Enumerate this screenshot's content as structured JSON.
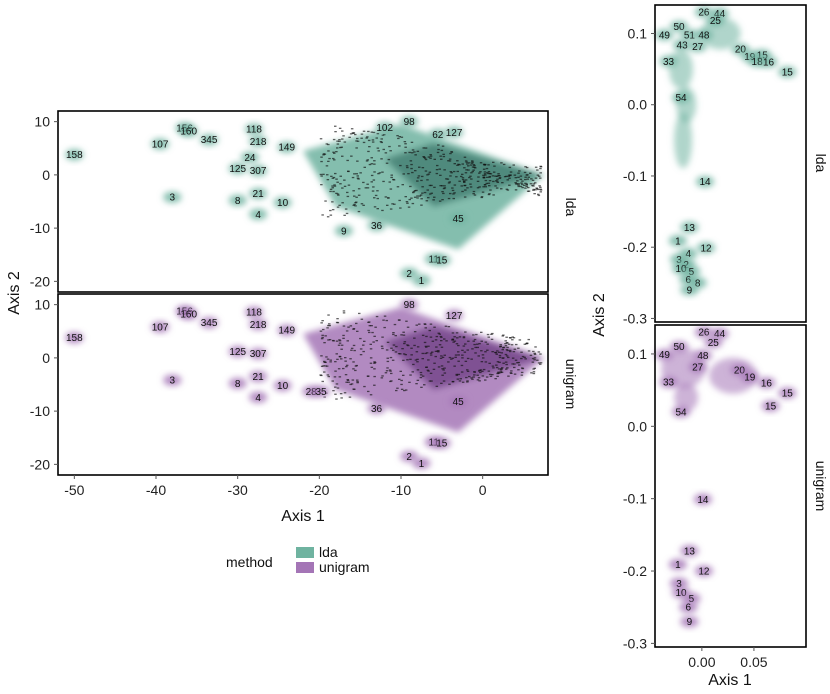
{
  "colors": {
    "lda": "#6fb3a0",
    "lda_dark": "#3f7a6c",
    "unigram": "#a475b6",
    "unigram_dark": "#6f3f84",
    "label": "#111111"
  },
  "legend": {
    "title": "method",
    "items": [
      "lda",
      "unigram"
    ]
  },
  "chart_data": [
    {
      "type": "scatter",
      "name": "left-faceted-plot",
      "xlabel": "Axis 1",
      "ylabel": "Axis 2",
      "xlim": [
        -52,
        8
      ],
      "ylim": [
        -22,
        12
      ],
      "xticks": [
        "-50",
        "-40",
        "-30",
        "-20",
        "-10",
        "0"
      ],
      "xtick_values": [
        -50,
        -40,
        -30,
        -20,
        -10,
        0
      ],
      "yticks": [
        "10",
        "0",
        "-10",
        "-20"
      ],
      "ytick_values": [
        10,
        0,
        -10,
        -20
      ],
      "facets": [
        {
          "label": "lda",
          "series": "lda",
          "points": [
            {
              "label": "158",
              "x": -50,
              "y": 3.8
            },
            {
              "label": "107",
              "x": -39.5,
              "y": 5.8
            },
            {
              "label": "156",
              "x": -36.5,
              "y": 8.8
            },
            {
              "label": "160",
              "x": -36,
              "y": 8.2
            },
            {
              "label": "345",
              "x": -33.5,
              "y": 6.6
            },
            {
              "label": "118",
              "x": -28,
              "y": 8.6
            },
            {
              "label": "218",
              "x": -27.5,
              "y": 6.3
            },
            {
              "label": "149",
              "x": -24,
              "y": 5.2
            },
            {
              "label": "24",
              "x": -28.5,
              "y": 3.3
            },
            {
              "label": "125",
              "x": -30,
              "y": 1.2
            },
            {
              "label": "307",
              "x": -27.5,
              "y": 0.8
            },
            {
              "label": "3",
              "x": -38,
              "y": -4.2
            },
            {
              "label": "8",
              "x": -30,
              "y": -4.8
            },
            {
              "label": "21",
              "x": -27.5,
              "y": -3.5
            },
            {
              "label": "10",
              "x": -24.5,
              "y": -5.2
            },
            {
              "label": "4",
              "x": -27.5,
              "y": -7.4
            },
            {
              "label": "9",
              "x": -17,
              "y": -10.5
            },
            {
              "label": "98",
              "x": -9,
              "y": 10
            },
            {
              "label": "102",
              "x": -12,
              "y": 8.9
            },
            {
              "label": "62",
              "x": -5.5,
              "y": 7.6
            },
            {
              "label": "127",
              "x": -3.5,
              "y": 8
            },
            {
              "label": "36",
              "x": -13,
              "y": -9.5
            },
            {
              "label": "45",
              "x": -3,
              "y": -8.2
            },
            {
              "label": "11",
              "x": -6,
              "y": -15.8
            },
            {
              "label": "15",
              "x": -5,
              "y": -16
            },
            {
              "label": "2",
              "x": -9,
              "y": -18.5
            },
            {
              "label": "1",
              "x": -7.5,
              "y": -19.8
            }
          ]
        },
        {
          "label": "unigram",
          "series": "unigram",
          "points": [
            {
              "label": "158",
              "x": -50,
              "y": 3.8
            },
            {
              "label": "107",
              "x": -39.5,
              "y": 5.8
            },
            {
              "label": "156",
              "x": -36.5,
              "y": 8.8
            },
            {
              "label": "160",
              "x": -36,
              "y": 8.2
            },
            {
              "label": "345",
              "x": -33.5,
              "y": 6.6
            },
            {
              "label": "118",
              "x": -28,
              "y": 8.6
            },
            {
              "label": "218",
              "x": -27.5,
              "y": 6.3
            },
            {
              "label": "149",
              "x": -24,
              "y": 5.2
            },
            {
              "label": "125",
              "x": -30,
              "y": 1.2
            },
            {
              "label": "307",
              "x": -27.5,
              "y": 0.8
            },
            {
              "label": "3",
              "x": -38,
              "y": -4.2
            },
            {
              "label": "8",
              "x": -30,
              "y": -4.8
            },
            {
              "label": "21",
              "x": -27.5,
              "y": -3.5
            },
            {
              "label": "10",
              "x": -24.5,
              "y": -5.2
            },
            {
              "label": "4",
              "x": -27.5,
              "y": -7.4
            },
            {
              "label": "28",
              "x": -21,
              "y": -6.3
            },
            {
              "label": "35",
              "x": -19.8,
              "y": -6.3
            },
            {
              "label": "36",
              "x": -13,
              "y": -9.5
            },
            {
              "label": "98",
              "x": -9,
              "y": 10
            },
            {
              "label": "127",
              "x": -3.5,
              "y": 8
            },
            {
              "label": "45",
              "x": -3,
              "y": -8.2
            },
            {
              "label": "11",
              "x": -6,
              "y": -15.8
            },
            {
              "label": "15",
              "x": -5,
              "y": -16
            },
            {
              "label": "2",
              "x": -9,
              "y": -18.5
            },
            {
              "label": "1",
              "x": -7.5,
              "y": -19.8
            }
          ]
        }
      ]
    },
    {
      "type": "scatter",
      "name": "right-faceted-plot",
      "xlabel": "Axis 1",
      "ylabel": "Axis 2",
      "xlim": [
        -0.045,
        0.1
      ],
      "ylim": [
        -0.305,
        0.14
      ],
      "xticks": [
        "0.00",
        "0.05"
      ],
      "xtick_values": [
        0.0,
        0.05
      ],
      "yticks": [
        "0.1",
        "0.0",
        "-0.1",
        "-0.2",
        "-0.3"
      ],
      "ytick_values": [
        0.1,
        0.0,
        -0.1,
        -0.2,
        -0.3
      ],
      "facets": [
        {
          "label": "lda",
          "series": "lda",
          "points": [
            {
              "label": "26",
              "x": 0.002,
              "y": 0.13
            },
            {
              "label": "44",
              "x": 0.017,
              "y": 0.128
            },
            {
              "label": "50",
              "x": -0.022,
              "y": 0.11
            },
            {
              "label": "49",
              "x": -0.036,
              "y": 0.098
            },
            {
              "label": "51",
              "x": -0.012,
              "y": 0.098
            },
            {
              "label": "48",
              "x": 0.002,
              "y": 0.098
            },
            {
              "label": "43",
              "x": -0.019,
              "y": 0.084
            },
            {
              "label": "27",
              "x": -0.004,
              "y": 0.082
            },
            {
              "label": "25",
              "x": 0.013,
              "y": 0.118
            },
            {
              "label": "20",
              "x": 0.037,
              "y": 0.078
            },
            {
              "label": "19",
              "x": 0.046,
              "y": 0.068
            },
            {
              "label": "15",
              "x": 0.058,
              "y": 0.07
            },
            {
              "label": "18",
              "x": 0.053,
              "y": 0.061
            },
            {
              "label": "16",
              "x": 0.064,
              "y": 0.06
            },
            {
              "label": "15",
              "x": 0.082,
              "y": 0.046
            },
            {
              "label": "33",
              "x": -0.032,
              "y": 0.061
            },
            {
              "label": "54",
              "x": -0.02,
              "y": 0.01
            },
            {
              "label": "14",
              "x": 0.003,
              "y": -0.108
            },
            {
              "label": "13",
              "x": -0.012,
              "y": -0.172
            },
            {
              "label": "1",
              "x": -0.023,
              "y": -0.191
            },
            {
              "label": "12",
              "x": 0.004,
              "y": -0.201
            },
            {
              "label": "4",
              "x": -0.013,
              "y": -0.209
            },
            {
              "label": "3",
              "x": -0.022,
              "y": -0.217
            },
            {
              "label": "2",
              "x": -0.015,
              "y": -0.224
            },
            {
              "label": "10",
              "x": -0.02,
              "y": -0.23
            },
            {
              "label": "5",
              "x": -0.01,
              "y": -0.234
            },
            {
              "label": "6",
              "x": -0.013,
              "y": -0.245
            },
            {
              "label": "8",
              "x": -0.004,
              "y": -0.25
            },
            {
              "label": "9",
              "x": -0.012,
              "y": -0.26
            }
          ]
        },
        {
          "label": "unigram",
          "series": "unigram",
          "points": [
            {
              "label": "26",
              "x": 0.002,
              "y": 0.13
            },
            {
              "label": "44",
              "x": 0.017,
              "y": 0.128
            },
            {
              "label": "50",
              "x": -0.022,
              "y": 0.11
            },
            {
              "label": "49",
              "x": -0.036,
              "y": 0.099
            },
            {
              "label": "48",
              "x": 0.001,
              "y": 0.098
            },
            {
              "label": "27",
              "x": -0.004,
              "y": 0.082
            },
            {
              "label": "25",
              "x": 0.011,
              "y": 0.116
            },
            {
              "label": "20",
              "x": 0.036,
              "y": 0.078
            },
            {
              "label": "19",
              "x": 0.046,
              "y": 0.068
            },
            {
              "label": "16",
              "x": 0.062,
              "y": 0.06
            },
            {
              "label": "15",
              "x": 0.082,
              "y": 0.046
            },
            {
              "label": "15",
              "x": 0.066,
              "y": 0.028
            },
            {
              "label": "33",
              "x": -0.032,
              "y": 0.061
            },
            {
              "label": "54",
              "x": -0.02,
              "y": 0.02
            },
            {
              "label": "14",
              "x": 0.001,
              "y": -0.101
            },
            {
              "label": "13",
              "x": -0.012,
              "y": -0.172
            },
            {
              "label": "1",
              "x": -0.023,
              "y": -0.191
            },
            {
              "label": "12",
              "x": 0.002,
              "y": -0.2
            },
            {
              "label": "3",
              "x": -0.022,
              "y": -0.217
            },
            {
              "label": "10",
              "x": -0.02,
              "y": -0.23
            },
            {
              "label": "5",
              "x": -0.01,
              "y": -0.238
            },
            {
              "label": "6",
              "x": -0.013,
              "y": -0.25
            },
            {
              "label": "9",
              "x": -0.012,
              "y": -0.27
            }
          ]
        }
      ]
    }
  ]
}
